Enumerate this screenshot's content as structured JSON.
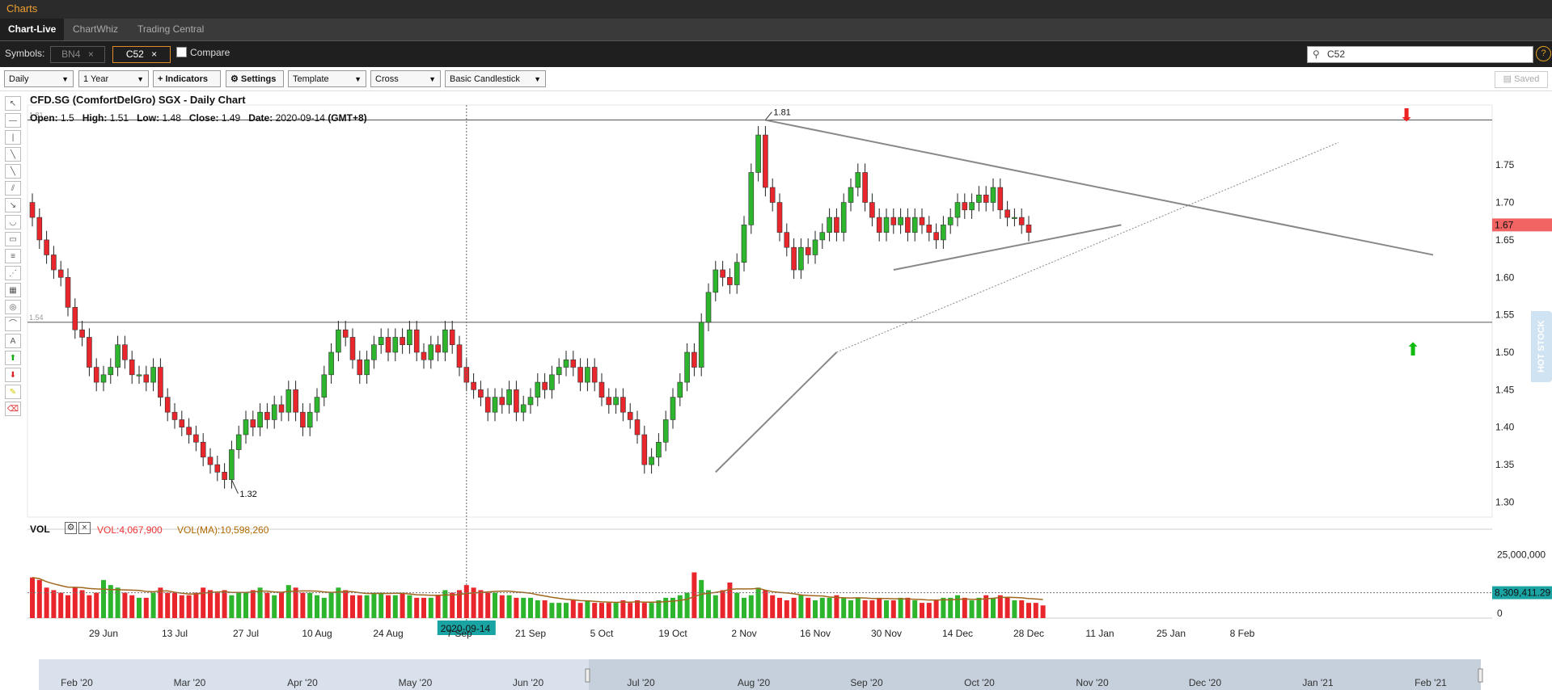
{
  "window": {
    "title": "Charts"
  },
  "tabs": [
    {
      "label": "Chart-Live",
      "active": true
    },
    {
      "label": "ChartWhiz",
      "active": false
    },
    {
      "label": "Trading Central",
      "active": false
    }
  ],
  "symbols": {
    "label": "Symbols:",
    "items": [
      {
        "code": "BN4",
        "selected": false
      },
      {
        "code": "C52",
        "selected": true
      }
    ],
    "compare_label": "Compare",
    "search_value": "C52"
  },
  "toolbar": {
    "interval": "Daily",
    "range": "1 Year",
    "indicators_label": "Indicators",
    "settings_label": "Settings",
    "template_label": "Template",
    "cursor_label": "Cross",
    "style_label": "Basic Candlestick",
    "saved_label": "Saved"
  },
  "drawing_tools": [
    "cursor-icon",
    "hline-icon",
    "vline-icon",
    "trendline-icon",
    "ray-icon",
    "channel-icon",
    "arrow-line-icon",
    "arc-icon",
    "rectangle-icon",
    "fib-icon",
    "fan-icon",
    "gann-icon",
    "spiral-icon",
    "arc2-icon",
    "text-icon",
    "up-arrow-icon",
    "down-arrow-icon",
    "highlighter-icon",
    "eraser-icon"
  ],
  "chart_header": {
    "title": "CFD.SG (ComfortDelGro) SGX - Daily Chart",
    "open_label": "Open:",
    "open": "1.5",
    "high_label": "High:",
    "high": "1.51",
    "low_label": "Low:",
    "low": "1.48",
    "close_label": "Close:",
    "close": "1.49",
    "date_label": "Date:",
    "date": "2020-09-14",
    "tz": "(GMT+8)"
  },
  "volume_panel": {
    "label": "VOL",
    "vol_text": "VOL:4,067,900",
    "vol_ma_text": "VOL(MA):10,598,260",
    "current_ma": "8,309,411.29",
    "axis_label": "25,000,000",
    "zero_label": "0"
  },
  "side_tab": "HOT STOCK",
  "crosshair_date": "2020-09-14",
  "current_price": "1.67",
  "colors": {
    "up": "#2db52d",
    "down": "#e8262c",
    "ma": "#a0681e",
    "crosshair_label": "#1aa3a3",
    "current_price_bg": "#f26363"
  },
  "chart_data": {
    "type": "candlestick",
    "title": "CFD.SG (ComfortDelGro) SGX - Daily Chart",
    "ylim": [
      1.28,
      1.83
    ],
    "y_ticks": [
      "1.75",
      "1.70",
      "1.65",
      "1.60",
      "1.55",
      "1.50",
      "1.45",
      "1.40",
      "1.35",
      "1.30"
    ],
    "x_ticks": [
      "29 Jun",
      "13 Jul",
      "27 Jul",
      "10 Aug",
      "24 Aug",
      "7 Sep",
      "21 Sep",
      "5 Oct",
      "19 Oct",
      "2 Nov",
      "16 Nov",
      "30 Nov",
      "14 Dec",
      "28 Dec",
      "11 Jan",
      "25 Jan",
      "8 Feb"
    ],
    "navigator_ticks": [
      "Feb '20",
      "Mar '20",
      "Apr '20",
      "May '20",
      "Jun '20",
      "Jul '20",
      "Aug '20",
      "Sep '20",
      "Oct '20",
      "Nov '20",
      "Dec '20",
      "Jan '21",
      "Feb '21"
    ],
    "horizontal_levels": [
      {
        "value": 1.81,
        "label": "1.81"
      },
      {
        "value": 1.54,
        "label": "1.54"
      }
    ],
    "annotations": [
      {
        "text": "1.81",
        "value": 1.81
      },
      {
        "text": "1.32",
        "value": 1.32
      }
    ],
    "closes": [
      1.68,
      1.65,
      1.63,
      1.61,
      1.6,
      1.56,
      1.53,
      1.52,
      1.48,
      1.46,
      1.47,
      1.48,
      1.51,
      1.49,
      1.47,
      1.47,
      1.46,
      1.48,
      1.44,
      1.42,
      1.41,
      1.4,
      1.39,
      1.38,
      1.36,
      1.35,
      1.34,
      1.33,
      1.37,
      1.39,
      1.41,
      1.4,
      1.42,
      1.41,
      1.43,
      1.42,
      1.45,
      1.42,
      1.4,
      1.42,
      1.44,
      1.47,
      1.5,
      1.53,
      1.52,
      1.49,
      1.47,
      1.49,
      1.51,
      1.52,
      1.5,
      1.52,
      1.51,
      1.53,
      1.5,
      1.49,
      1.51,
      1.5,
      1.53,
      1.51,
      1.48,
      1.46,
      1.45,
      1.44,
      1.42,
      1.44,
      1.43,
      1.45,
      1.42,
      1.43,
      1.44,
      1.46,
      1.45,
      1.47,
      1.48,
      1.49,
      1.48,
      1.46,
      1.48,
      1.46,
      1.44,
      1.43,
      1.44,
      1.42,
      1.41,
      1.39,
      1.35,
      1.36,
      1.38,
      1.41,
      1.44,
      1.46,
      1.5,
      1.48,
      1.54,
      1.58,
      1.61,
      1.6,
      1.59,
      1.62,
      1.67,
      1.74,
      1.79,
      1.72,
      1.7,
      1.66,
      1.64,
      1.61,
      1.64,
      1.63,
      1.65,
      1.66,
      1.68,
      1.66,
      1.7,
      1.72,
      1.74,
      1.7,
      1.68,
      1.66,
      1.68,
      1.67,
      1.68,
      1.66,
      1.68,
      1.67,
      1.66,
      1.65,
      1.67,
      1.68,
      1.7,
      1.69,
      1.7,
      1.71,
      1.7,
      1.72,
      1.69,
      1.68,
      1.68,
      1.67,
      1.66
    ],
    "volumes": [
      16,
      15,
      12,
      11,
      10,
      9,
      12,
      11,
      9,
      10,
      15,
      13,
      12,
      10,
      9,
      8,
      8,
      10,
      12,
      10,
      10,
      9,
      9,
      10,
      12,
      11,
      10,
      11,
      9,
      10,
      10,
      11,
      12,
      10,
      9,
      10,
      13,
      12,
      10,
      10,
      9,
      8,
      10,
      12,
      11,
      9,
      9,
      9,
      10,
      10,
      9,
      9,
      10,
      9,
      8,
      8,
      8,
      9,
      11,
      10,
      11,
      13,
      12,
      11,
      10,
      10,
      9,
      9,
      8,
      8,
      8,
      7,
      7,
      6,
      6,
      6,
      7,
      6,
      7,
      6,
      6,
      6,
      6,
      7,
      6,
      7,
      6,
      6,
      7,
      8,
      8,
      9,
      10,
      18,
      15,
      11,
      9,
      11,
      14,
      10,
      8,
      9,
      12,
      11,
      9,
      8,
      7,
      8,
      9,
      8,
      7,
      8,
      8,
      9,
      8,
      7,
      8,
      7,
      7,
      8,
      7,
      7,
      8,
      8,
      7,
      6,
      6,
      7,
      8,
      8,
      9,
      8,
      7,
      8,
      9,
      8,
      9,
      8,
      7,
      7,
      6,
      6,
      5
    ],
    "vol_ylim": [
      0,
      35
    ]
  }
}
